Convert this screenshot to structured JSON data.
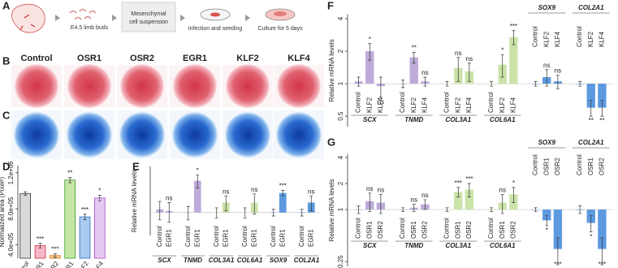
{
  "panel_a": {
    "label": "A",
    "steps": [
      [
        "E4.5 limb buds"
      ],
      [
        "Mesenchymal",
        "cell suspension"
      ],
      [
        "Infection and seeding"
      ],
      [
        "Culture for 5 days"
      ]
    ]
  },
  "panel_b": {
    "label": "B"
  },
  "panel_c": {
    "label": "C"
  },
  "conditions": [
    "Control",
    "OSR1",
    "OSR2",
    "EGR1",
    "KLF2",
    "KLF4"
  ],
  "chart_data": [
    {
      "panel": "D",
      "type": "bar",
      "y_label": "Normalized area (Pixel²)",
      "log_scale": false,
      "categories": [
        "Control",
        "OSR1",
        "OSR2",
        "EGR1",
        "KLF2",
        "KLF4"
      ],
      "values": [
        970000,
        390000,
        280000,
        1120000,
        710000,
        920000
      ],
      "errors": [
        20000,
        25000,
        20000,
        30000,
        30000,
        30000
      ],
      "significance": [
        null,
        "***",
        "***",
        "**",
        "***",
        "*"
      ],
      "colors": [
        "#d9d9d9",
        "#f7b9c8",
        "#f9c98f",
        "#c6e6a4",
        "#a9cbef",
        "#e6c8f2"
      ],
      "edge_colors": [
        "#333333",
        "#d2304f",
        "#e07b1a",
        "#3f9a2a",
        "#2c6bc0",
        "#a54bc4"
      ],
      "ylim": [
        250000,
        1280000
      ],
      "yticks": [
        {
          "value": 400000,
          "label": "4.0e+05"
        },
        {
          "value": 800000,
          "label": "8.0e+05"
        },
        {
          "value": 1200000,
          "label": "1.2e+06"
        }
      ]
    },
    {
      "panel": "E",
      "type": "bar",
      "y_label": "Relative mRNA levels",
      "log_scale": true,
      "categories": [
        "SCX",
        "TNMD",
        "COL3A1",
        "COL6A1",
        "SOX9",
        "COL2A1"
      ],
      "colors": [
        "#b7a2d6",
        "#b7a2d6",
        "#c5e0a0",
        "#c5e0a0",
        "#4a8fdc",
        "#4a8fdc"
      ],
      "series": [
        {
          "name": "Control",
          "values": [
            1.1,
            1.0,
            1.0,
            1.0,
            1.0,
            1.0
          ],
          "errors": [
            0.3,
            0.2,
            0.15,
            0.15,
            0.1,
            0.1
          ]
        },
        {
          "name": "EGR1",
          "values": [
            1.05,
            2.6,
            1.35,
            1.35,
            1.8,
            1.35
          ],
          "errors": [
            0.3,
            0.5,
            0.3,
            0.4,
            0.15,
            0.3
          ],
          "significance": [
            "ns",
            "*",
            "ns",
            "ns",
            "***",
            "ns"
          ]
        }
      ],
      "ylim": [
        0.5,
        4
      ]
    },
    {
      "panel": "F",
      "type": "bar",
      "y_label": "Relative mRNA levels",
      "log_scale": true,
      "categories": [
        "SCX",
        "TNMD",
        "COL3A1",
        "COL6A1",
        "SOX9",
        "COL2A1"
      ],
      "colors": [
        "#b7a2d6",
        "#b7a2d6",
        "#c5e0a0",
        "#c5e0a0",
        "#4a8fdc",
        "#4a8fdc"
      ],
      "series": [
        {
          "name": "Control",
          "values": [
            1.05,
            1.0,
            1.0,
            1.0,
            1.0,
            1.0
          ],
          "errors": [
            0.1,
            0.08,
            0.05,
            0.05,
            0.05,
            0.05
          ]
        },
        {
          "name": "KLF2",
          "values": [
            2.0,
            1.75,
            1.4,
            1.5,
            1.15,
            0.6
          ],
          "errors": [
            0.35,
            0.2,
            0.35,
            0.35,
            0.2,
            0.1
          ],
          "significance": [
            "*",
            "**",
            "ns",
            "*",
            "ns",
            "**"
          ]
        },
        {
          "name": "KLF4",
          "values": [
            0.95,
            1.05,
            1.3,
            2.7,
            1.05,
            0.6
          ],
          "errors": [
            0.2,
            0.1,
            0.25,
            0.4,
            0.15,
            0.1
          ],
          "significance": [
            "ns",
            "ns",
            "ns",
            "***",
            "ns",
            "**"
          ]
        }
      ],
      "ylim": [
        0.4,
        4.4
      ],
      "yticks": [
        4,
        2,
        1,
        0.5
      ]
    },
    {
      "panel": "G",
      "type": "bar",
      "y_label": "Relative mRNA levels",
      "log_scale": true,
      "categories": [
        "SCX",
        "TNMD",
        "COL3A1",
        "COL6A1",
        "SOX9",
        "COL2A1"
      ],
      "colors": [
        "#b7a2d6",
        "#b7a2d6",
        "#c5e0a0",
        "#c5e0a0",
        "#4a8fdc",
        "#4a8fdc"
      ],
      "series": [
        {
          "name": "Control",
          "values": [
            1.0,
            1.0,
            1.0,
            1.0,
            1.0,
            1.0
          ],
          "errors": [
            0.1,
            0.05,
            0.05,
            0.05,
            0.05,
            0.1
          ]
        },
        {
          "name": "OSR1",
          "values": [
            1.25,
            1.05,
            1.6,
            1.2,
            0.75,
            0.7
          ],
          "errors": [
            0.3,
            0.1,
            0.2,
            0.3,
            0.1,
            0.15
          ],
          "significance": [
            "ns",
            "ns",
            "***",
            "ns",
            "*",
            "*"
          ]
        },
        {
          "name": "OSR2",
          "values": [
            1.2,
            1.15,
            1.7,
            1.5,
            0.35,
            0.35
          ],
          "errors": [
            0.3,
            0.15,
            0.3,
            0.3,
            0.12,
            0.12
          ],
          "significance": [
            "ns",
            "ns",
            "***",
            "*",
            "***",
            "***"
          ]
        }
      ],
      "ylim": [
        0.22,
        4.4
      ],
      "yticks": [
        4,
        2,
        1,
        0.25
      ]
    }
  ]
}
